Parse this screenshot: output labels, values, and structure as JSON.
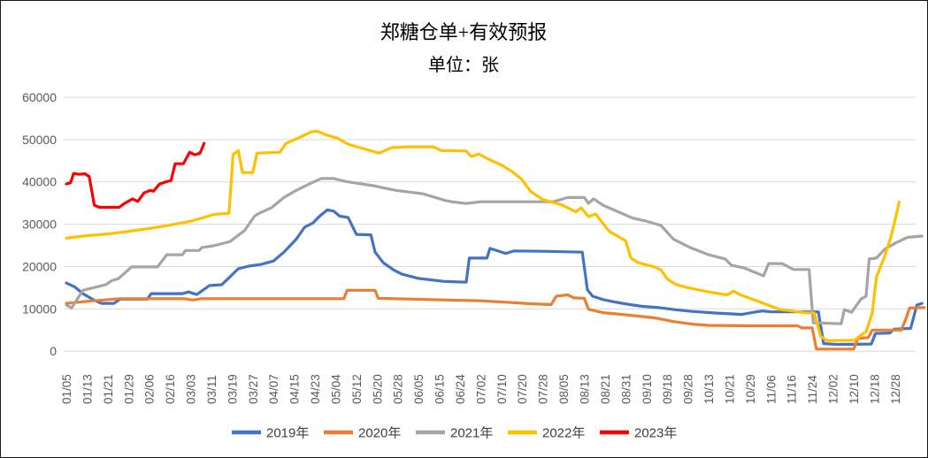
{
  "chart_data": {
    "type": "line",
    "title": "郑糖仓单+有效预报",
    "subtitle": "单位：张",
    "ylabel": "",
    "xlabel": "",
    "ylim": [
      0,
      60000
    ],
    "ytick_step": 10000,
    "ytick_labels": [
      "0",
      "10000",
      "20000",
      "30000",
      "40000",
      "50000",
      "60000"
    ],
    "x_tick_labels": [
      "01/05",
      "01/13",
      "01/21",
      "01/29",
      "02/06",
      "02/16",
      "03/03",
      "03/11",
      "03/19",
      "03/27",
      "04/07",
      "04/15",
      "04/23",
      "05/04",
      "05/12",
      "05/20",
      "05/28",
      "06/05",
      "06/15",
      "06/24",
      "07/02",
      "07/10",
      "07/20",
      "07/28",
      "08/05",
      "08/13",
      "08/21",
      "08/31",
      "09/10",
      "09/18",
      "09/28",
      "10/13",
      "10/21",
      "10/29",
      "11/06",
      "11/16",
      "11/24",
      "12/02",
      "12/10",
      "12/18",
      "12/28"
    ],
    "grid": "horizontal",
    "legend_position": "bottom",
    "axis_text_color": "#595959",
    "grid_color": "#D9D9D9",
    "border_color": "#1A1A1A",
    "background_color": "#FFFFFF",
    "series": [
      {
        "name": "2019年",
        "color": "#4472C4",
        "points": [
          [
            0,
            16100
          ],
          [
            0.4,
            15200
          ],
          [
            0.8,
            13600
          ],
          [
            1.4,
            11900
          ],
          [
            1.7,
            11300
          ],
          [
            2.3,
            11300
          ],
          [
            2.6,
            12300
          ],
          [
            3.9,
            12300
          ],
          [
            4.1,
            13600
          ],
          [
            5.6,
            13600
          ],
          [
            5.9,
            14000
          ],
          [
            6.3,
            13400
          ],
          [
            6.9,
            15500
          ],
          [
            7.5,
            15700
          ],
          [
            7.8,
            17100
          ],
          [
            8.3,
            19500
          ],
          [
            8.8,
            20100
          ],
          [
            9.4,
            20500
          ],
          [
            10,
            21300
          ],
          [
            10.5,
            23400
          ],
          [
            11.1,
            26500
          ],
          [
            11.5,
            29300
          ],
          [
            11.9,
            30300
          ],
          [
            12.2,
            31800
          ],
          [
            12.6,
            33400
          ],
          [
            12.9,
            33100
          ],
          [
            13.2,
            31900
          ],
          [
            13.6,
            31600
          ],
          [
            14,
            27600
          ],
          [
            14.7,
            27500
          ],
          [
            14.9,
            23400
          ],
          [
            15.3,
            20900
          ],
          [
            15.8,
            19200
          ],
          [
            16.2,
            18200
          ],
          [
            17,
            17200
          ],
          [
            18.2,
            16500
          ],
          [
            19.3,
            16300
          ],
          [
            19.45,
            22000
          ],
          [
            20.3,
            22000
          ],
          [
            20.45,
            24300
          ],
          [
            21.2,
            23100
          ],
          [
            21.6,
            23700
          ],
          [
            23,
            23600
          ],
          [
            24.9,
            23400
          ],
          [
            25.15,
            14500
          ],
          [
            25.4,
            13000
          ],
          [
            25.9,
            12200
          ],
          [
            26.5,
            11600
          ],
          [
            27.2,
            11000
          ],
          [
            27.8,
            10600
          ],
          [
            28.6,
            10300
          ],
          [
            29.4,
            9800
          ],
          [
            30.2,
            9400
          ],
          [
            31.4,
            9000
          ],
          [
            32.6,
            8700
          ],
          [
            33.3,
            9300
          ],
          [
            33.6,
            9500
          ],
          [
            34,
            9300
          ],
          [
            36.3,
            9300
          ],
          [
            36.55,
            1800
          ],
          [
            37.2,
            1600
          ],
          [
            38.85,
            1700
          ],
          [
            39.05,
            4200
          ],
          [
            39.75,
            4300
          ],
          [
            39.95,
            5200
          ],
          [
            40.75,
            5400
          ],
          [
            41.05,
            10900
          ],
          [
            41.3,
            11300
          ]
        ]
      },
      {
        "name": "2020年",
        "color": "#ED7D31",
        "points": [
          [
            0,
            11300
          ],
          [
            0.6,
            11600
          ],
          [
            1.3,
            11900
          ],
          [
            2.6,
            12400
          ],
          [
            5.7,
            12400
          ],
          [
            6.1,
            12100
          ],
          [
            6.5,
            12400
          ],
          [
            13.4,
            12400
          ],
          [
            13.55,
            14400
          ],
          [
            14.9,
            14400
          ],
          [
            15.05,
            12500
          ],
          [
            17.5,
            12200
          ],
          [
            20,
            11900
          ],
          [
            21.5,
            11500
          ],
          [
            22.5,
            11200
          ],
          [
            23.4,
            11000
          ],
          [
            23.65,
            13000
          ],
          [
            24.2,
            13300
          ],
          [
            24.5,
            12600
          ],
          [
            25,
            12500
          ],
          [
            25.2,
            9900
          ],
          [
            25.9,
            9100
          ],
          [
            26.8,
            8700
          ],
          [
            27.6,
            8300
          ],
          [
            28.5,
            7800
          ],
          [
            29.3,
            7000
          ],
          [
            30.2,
            6400
          ],
          [
            31,
            6100
          ],
          [
            33,
            6000
          ],
          [
            35.3,
            6000
          ],
          [
            35.5,
            5500
          ],
          [
            36,
            5500
          ],
          [
            36.2,
            500
          ],
          [
            38,
            500
          ],
          [
            38.2,
            3000
          ],
          [
            38.7,
            3200
          ],
          [
            38.9,
            5000
          ],
          [
            40.3,
            5000
          ],
          [
            40.55,
            8000
          ],
          [
            40.7,
            10200
          ],
          [
            41.4,
            10300
          ]
        ]
      },
      {
        "name": "2021年",
        "color": "#A5A5A5",
        "points": [
          [
            0,
            10900
          ],
          [
            0.25,
            10200
          ],
          [
            0.8,
            14400
          ],
          [
            1.3,
            15000
          ],
          [
            1.9,
            15700
          ],
          [
            2.2,
            16700
          ],
          [
            2.5,
            17100
          ],
          [
            3.15,
            19900
          ],
          [
            4.4,
            19900
          ],
          [
            4.85,
            22800
          ],
          [
            5.6,
            22800
          ],
          [
            5.75,
            23800
          ],
          [
            6.4,
            23800
          ],
          [
            6.55,
            24500
          ],
          [
            7.1,
            24900
          ],
          [
            7.9,
            25900
          ],
          [
            8.6,
            28500
          ],
          [
            9.1,
            32000
          ],
          [
            9.4,
            32800
          ],
          [
            9.9,
            33900
          ],
          [
            10.5,
            36300
          ],
          [
            11.1,
            38000
          ],
          [
            11.8,
            39700
          ],
          [
            12.3,
            40800
          ],
          [
            12.9,
            40800
          ],
          [
            13.5,
            40100
          ],
          [
            14.8,
            39100
          ],
          [
            15.9,
            38000
          ],
          [
            17.2,
            37200
          ],
          [
            18.3,
            35600
          ],
          [
            18.6,
            35300
          ],
          [
            19.3,
            34900
          ],
          [
            20,
            35300
          ],
          [
            23.5,
            35300
          ],
          [
            24.2,
            36300
          ],
          [
            25,
            36300
          ],
          [
            25.2,
            34900
          ],
          [
            25.45,
            36000
          ],
          [
            25.9,
            34500
          ],
          [
            26.6,
            33000
          ],
          [
            27.3,
            31500
          ],
          [
            28,
            30700
          ],
          [
            28.7,
            29700
          ],
          [
            29.3,
            26500
          ],
          [
            30.1,
            24500
          ],
          [
            31,
            22800
          ],
          [
            31.8,
            21800
          ],
          [
            32.1,
            20300
          ],
          [
            32.7,
            19700
          ],
          [
            33.3,
            18500
          ],
          [
            33.65,
            17800
          ],
          [
            33.9,
            20700
          ],
          [
            34.55,
            20700
          ],
          [
            35.1,
            19300
          ],
          [
            35.85,
            19300
          ],
          [
            36.05,
            6700
          ],
          [
            37.4,
            6500
          ],
          [
            37.55,
            9800
          ],
          [
            37.9,
            9200
          ],
          [
            38.35,
            12300
          ],
          [
            38.6,
            13000
          ],
          [
            38.75,
            21800
          ],
          [
            39.1,
            22000
          ],
          [
            39.5,
            24100
          ],
          [
            40,
            25500
          ],
          [
            40.6,
            26900
          ],
          [
            41.3,
            27200
          ]
        ]
      },
      {
        "name": "2022年",
        "color": "#FFC000",
        "points": [
          [
            0,
            26700
          ],
          [
            1,
            27300
          ],
          [
            2,
            27700
          ],
          [
            3,
            28300
          ],
          [
            4,
            29000
          ],
          [
            5,
            29800
          ],
          [
            6,
            30700
          ],
          [
            6.7,
            31700
          ],
          [
            7.1,
            32300
          ],
          [
            7.85,
            32600
          ],
          [
            8.05,
            46500
          ],
          [
            8.3,
            47400
          ],
          [
            8.5,
            42200
          ],
          [
            9,
            42200
          ],
          [
            9.2,
            46800
          ],
          [
            10.3,
            47000
          ],
          [
            10.6,
            49100
          ],
          [
            11.3,
            50600
          ],
          [
            11.8,
            51800
          ],
          [
            12.1,
            52000
          ],
          [
            12.6,
            51000
          ],
          [
            13.1,
            50300
          ],
          [
            13.6,
            48900
          ],
          [
            14.3,
            47900
          ],
          [
            15.1,
            46800
          ],
          [
            15.7,
            48100
          ],
          [
            16.5,
            48300
          ],
          [
            17.7,
            48300
          ],
          [
            18.1,
            47400
          ],
          [
            19.3,
            47300
          ],
          [
            19.55,
            46000
          ],
          [
            19.9,
            46600
          ],
          [
            20.4,
            45300
          ],
          [
            21,
            44000
          ],
          [
            21.5,
            42500
          ],
          [
            22,
            40500
          ],
          [
            22.4,
            37800
          ],
          [
            23,
            35800
          ],
          [
            23.9,
            34600
          ],
          [
            24.6,
            32900
          ],
          [
            24.85,
            33900
          ],
          [
            25.2,
            31800
          ],
          [
            25.55,
            32400
          ],
          [
            26.2,
            28300
          ],
          [
            26.6,
            27200
          ],
          [
            27,
            26100
          ],
          [
            27.25,
            22000
          ],
          [
            27.6,
            20900
          ],
          [
            28.4,
            19900
          ],
          [
            28.7,
            19200
          ],
          [
            29,
            17100
          ],
          [
            29.4,
            15800
          ],
          [
            30,
            15000
          ],
          [
            31,
            14000
          ],
          [
            31.9,
            13300
          ],
          [
            32.2,
            14200
          ],
          [
            32.5,
            13400
          ],
          [
            33.5,
            11600
          ],
          [
            34.4,
            9900
          ],
          [
            35.6,
            9100
          ],
          [
            36.1,
            9000
          ],
          [
            36.4,
            3600
          ],
          [
            36.7,
            2500
          ],
          [
            38.05,
            2600
          ],
          [
            38.3,
            3600
          ],
          [
            38.6,
            4600
          ],
          [
            38.9,
            9000
          ],
          [
            39.1,
            17500
          ],
          [
            39.5,
            22500
          ],
          [
            39.8,
            27000
          ],
          [
            40,
            31000
          ],
          [
            40.2,
            35300
          ]
        ]
      },
      {
        "name": "2023年",
        "color": "#FF0000",
        "points": [
          [
            0,
            39500
          ],
          [
            0.2,
            39800
          ],
          [
            0.35,
            42000
          ],
          [
            0.6,
            41800
          ],
          [
            0.9,
            41900
          ],
          [
            1.1,
            41300
          ],
          [
            1.35,
            34500
          ],
          [
            1.6,
            34000
          ],
          [
            2.55,
            34000
          ],
          [
            2.8,
            34900
          ],
          [
            3.2,
            36000
          ],
          [
            3.45,
            35400
          ],
          [
            3.75,
            37400
          ],
          [
            4.05,
            38000
          ],
          [
            4.2,
            37800
          ],
          [
            4.5,
            39500
          ],
          [
            4.85,
            40100
          ],
          [
            5.05,
            40300
          ],
          [
            5.25,
            44300
          ],
          [
            5.65,
            44300
          ],
          [
            5.95,
            47000
          ],
          [
            6.2,
            46400
          ],
          [
            6.45,
            46800
          ],
          [
            6.65,
            49100
          ]
        ]
      }
    ]
  }
}
